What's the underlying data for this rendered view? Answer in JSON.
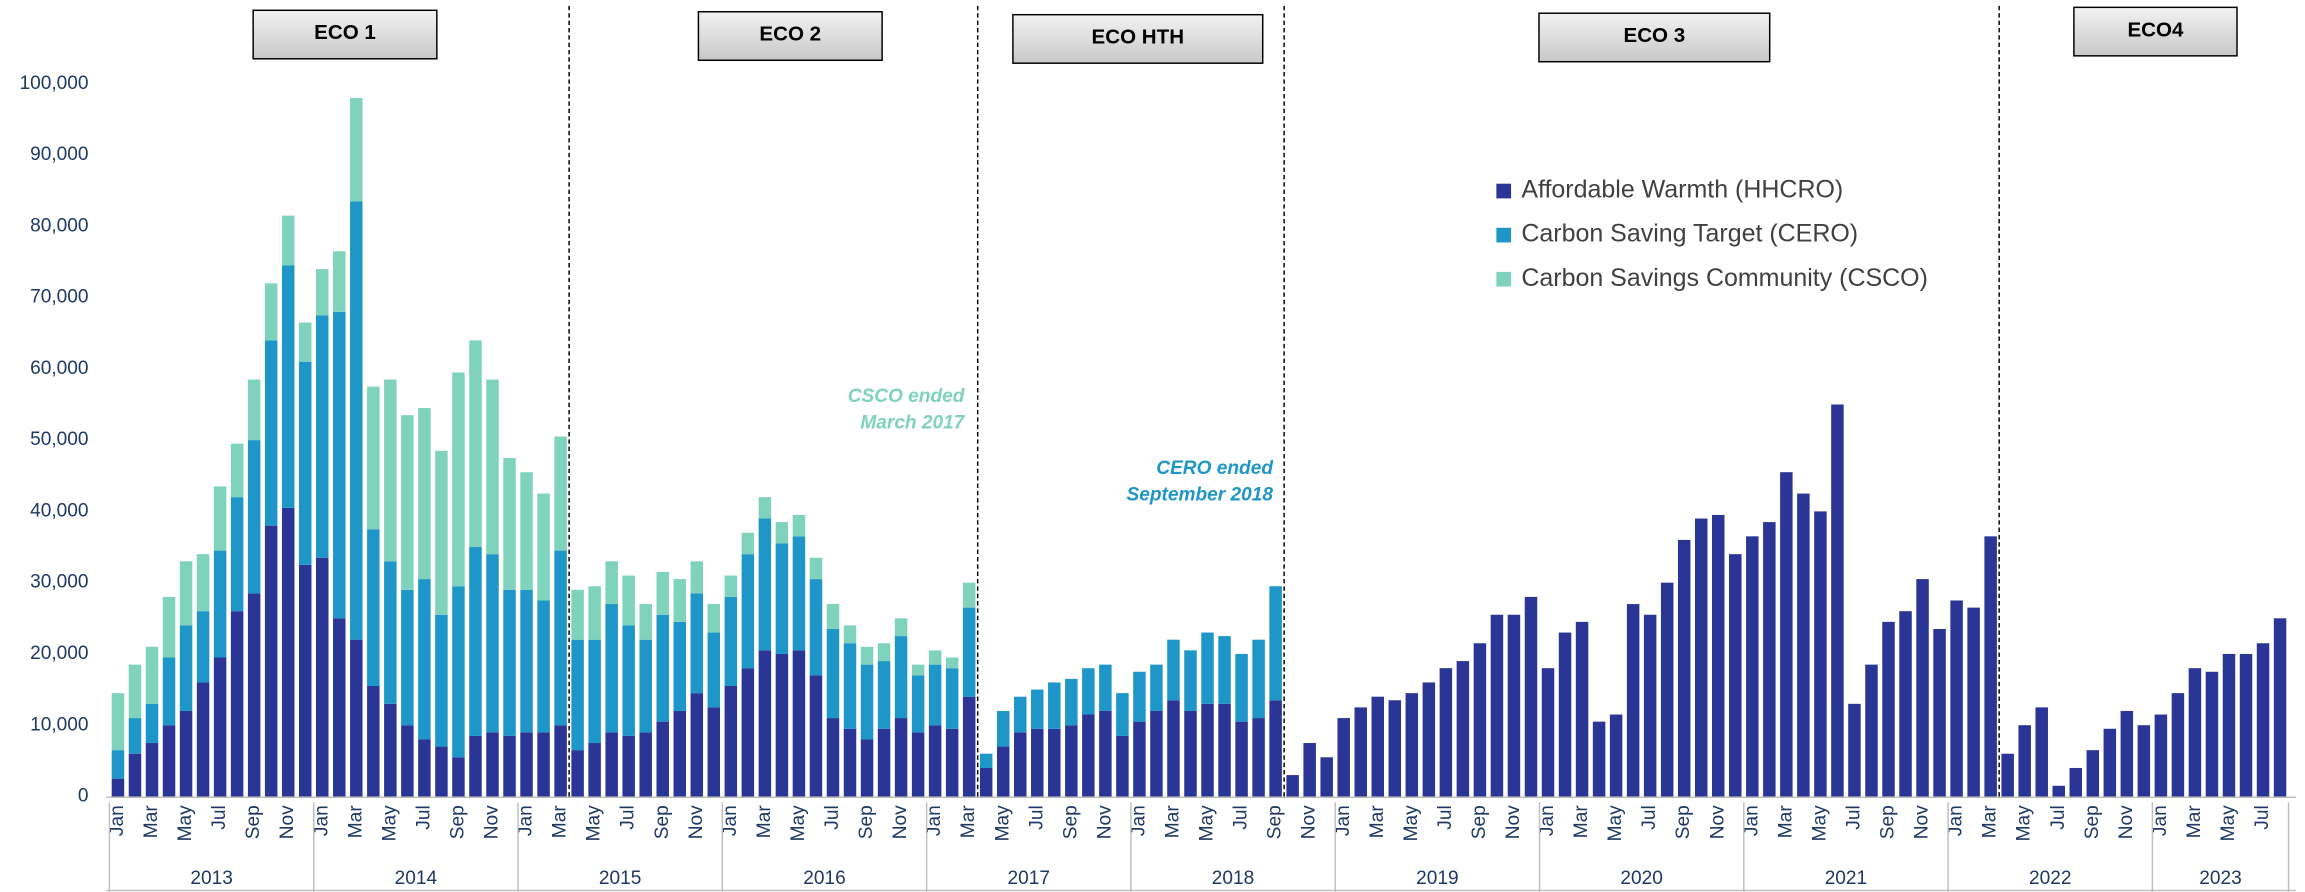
{
  "chart_data": {
    "type": "stacked-bar",
    "phases": [
      "ECO 1",
      "ECO 2",
      "ECO HTH",
      "ECO 3",
      "ECO4"
    ],
    "annotations": [
      {
        "lines": [
          "CSCO ended",
          "March 2017"
        ],
        "color": "#7fd3bd"
      },
      {
        "lines": [
          "CERO ended",
          "September 2018"
        ],
        "color": "#1f96c8"
      }
    ],
    "years": [
      "2013",
      "2014",
      "2015",
      "2016",
      "2017",
      "2018",
      "2019",
      "2020",
      "2021",
      "2022",
      "2023"
    ],
    "categories": [
      "Jan",
      null,
      "Mar",
      null,
      "May",
      null,
      "Jul",
      null,
      "Sep",
      null,
      "Nov",
      null,
      "Jan",
      null,
      "Mar",
      null,
      "May",
      null,
      "Jul",
      null,
      "Sep",
      null,
      "Nov",
      null,
      "Jan",
      null,
      "Mar",
      null,
      "May",
      null,
      "Jul",
      null,
      "Sep",
      null,
      "Nov",
      null,
      "Jan",
      null,
      "Mar",
      null,
      "May",
      null,
      "Jul",
      null,
      "Sep",
      null,
      "Nov",
      null,
      "Jan",
      null,
      "Mar",
      null,
      "May",
      null,
      "Jul",
      null,
      "Sep",
      null,
      "Nov",
      null,
      "Jan",
      null,
      "Mar",
      null,
      "May",
      null,
      "Jul",
      null,
      "Sep",
      null,
      "Nov",
      null,
      "Jan",
      null,
      "Mar",
      null,
      "May",
      null,
      "Jul",
      null,
      "Sep",
      null,
      "Nov",
      null,
      "Jan",
      null,
      "Mar",
      null,
      "May",
      null,
      "Jul",
      null,
      "Sep",
      null,
      "Nov",
      null,
      "Jan",
      null,
      "Mar",
      null,
      "May",
      null,
      "Jul",
      null,
      "Sep",
      null,
      "Nov",
      null,
      "Jan",
      null,
      "Mar",
      null,
      "May",
      null,
      "Jul",
      null,
      "Sep",
      null,
      "Nov",
      null,
      "Jan",
      null,
      "Mar",
      null,
      "May",
      null,
      "Jul",
      null
    ],
    "series": [
      {
        "name": "Affordable Warmth (HHCRO)",
        "color": "#2b3595",
        "values": [
          2500,
          6000,
          7500,
          10000,
          12000,
          16000,
          19500,
          26000,
          28500,
          38000,
          40500,
          32500,
          33500,
          25000,
          22000,
          15500,
          13000,
          10000,
          8000,
          7000,
          5500,
          8500,
          9000,
          8500,
          9000,
          9000,
          10000,
          6500,
          7500,
          9000,
          8500,
          9000,
          10500,
          12000,
          14500,
          12500,
          15500,
          18000,
          20500,
          20000,
          20500,
          17000,
          11000,
          9500,
          8000,
          9500,
          11000,
          9000,
          10000,
          9500,
          14000,
          4000,
          7000,
          9000,
          9500,
          9500,
          10000,
          11500,
          12000,
          8500,
          10500,
          12000,
          13500,
          12000,
          13000,
          13000,
          10500,
          11000,
          13500,
          3000,
          7500,
          5500,
          11000,
          12500,
          14000,
          13500,
          14500,
          16000,
          18000,
          19000,
          21500,
          25500,
          25500,
          28000,
          18000,
          23000,
          24500,
          10500,
          11500,
          27000,
          25500,
          30000,
          36000,
          39000,
          39500,
          34000,
          36500,
          38500,
          45500,
          42500,
          40000,
          55000,
          13000,
          18500,
          24500,
          26000,
          30500,
          23500,
          27500,
          26500,
          36500,
          6000,
          10000,
          12500,
          1500,
          4000,
          6500,
          9500,
          12000,
          10000,
          11500,
          14500,
          18000,
          17500,
          20000,
          20000,
          21500,
          25000
        ]
      },
      {
        "name": "Carbon Saving Target (CERO)",
        "color": "#1f96c8",
        "values": [
          4000,
          5000,
          5500,
          9500,
          12000,
          10000,
          15000,
          16000,
          21500,
          26000,
          34000,
          28500,
          34000,
          43000,
          61500,
          22000,
          20000,
          19000,
          22500,
          18500,
          24000,
          26500,
          25000,
          20500,
          20000,
          18500,
          24500,
          15500,
          14500,
          18000,
          15500,
          13000,
          15000,
          12500,
          14000,
          10500,
          12500,
          16000,
          18500,
          15500,
          16000,
          13500,
          12500,
          12000,
          10500,
          9500,
          11500,
          8000,
          8500,
          8500,
          12500,
          2000,
          5000,
          5000,
          5500,
          6500,
          6500,
          6500,
          6500,
          6000,
          7000,
          6500,
          8500,
          8500,
          10000,
          9500,
          9500,
          11000,
          16000,
          null,
          null,
          null,
          null,
          null,
          null,
          null,
          null,
          null,
          null,
          null,
          null,
          null,
          null,
          null,
          null,
          null,
          null,
          null,
          null,
          null,
          null,
          null,
          null,
          null,
          null,
          null,
          null,
          null,
          null,
          null,
          null,
          null,
          null,
          null,
          null,
          null,
          null,
          null,
          null,
          null,
          null,
          null,
          null,
          null,
          null,
          null,
          null,
          null,
          null,
          null,
          null,
          null,
          null,
          null,
          null,
          null,
          null,
          null
        ]
      },
      {
        "name": "Carbon Savings Community  (CSCO)",
        "color": "#7fd3bd",
        "values": [
          8000,
          7500,
          8000,
          8500,
          9000,
          8000,
          9000,
          7500,
          8500,
          8000,
          7000,
          5500,
          6500,
          8500,
          14500,
          20000,
          25500,
          24500,
          24000,
          23000,
          30000,
          29000,
          24500,
          18500,
          16500,
          15000,
          16000,
          7000,
          7500,
          6000,
          7000,
          5000,
          6000,
          6000,
          4500,
          4000,
          3000,
          3000,
          3000,
          3000,
          3000,
          3000,
          3500,
          2500,
          2500,
          2500,
          2500,
          1500,
          2000,
          1500,
          3500,
          null,
          null,
          null,
          null,
          null,
          null,
          null,
          null,
          null,
          null,
          null,
          null,
          null,
          null,
          null,
          null,
          null,
          null,
          null,
          null,
          null,
          null,
          null,
          null,
          null,
          null,
          null,
          null,
          null,
          null,
          null,
          null,
          null,
          null,
          null,
          null,
          null,
          null,
          null,
          null,
          null,
          null,
          null,
          null,
          null,
          null,
          null,
          null,
          null,
          null,
          null,
          null,
          null,
          null,
          null,
          null,
          null,
          null,
          null,
          null,
          null,
          null,
          null,
          null,
          null,
          null,
          null,
          null,
          null,
          null,
          null,
          null,
          null,
          null,
          null,
          null,
          null
        ]
      }
    ],
    "ylim": [
      0,
      100000
    ],
    "yticks": [
      0,
      {
        "value": 10000,
        "label": "10,000"
      },
      {
        "value": 20000,
        "label": "20,000"
      },
      {
        "value": 30000,
        "label": "30,000"
      },
      {
        "value": 40000,
        "label": "40,000"
      },
      {
        "value": 50000,
        "label": "50,000"
      },
      {
        "value": 60000,
        "label": "60,000"
      },
      {
        "value": 70000,
        "label": "70,000"
      },
      {
        "value": 80000,
        "label": "80,000"
      },
      {
        "value": 90000,
        "label": "90,000"
      },
      {
        "value": 100000,
        "label": "100,000"
      }
    ]
  }
}
